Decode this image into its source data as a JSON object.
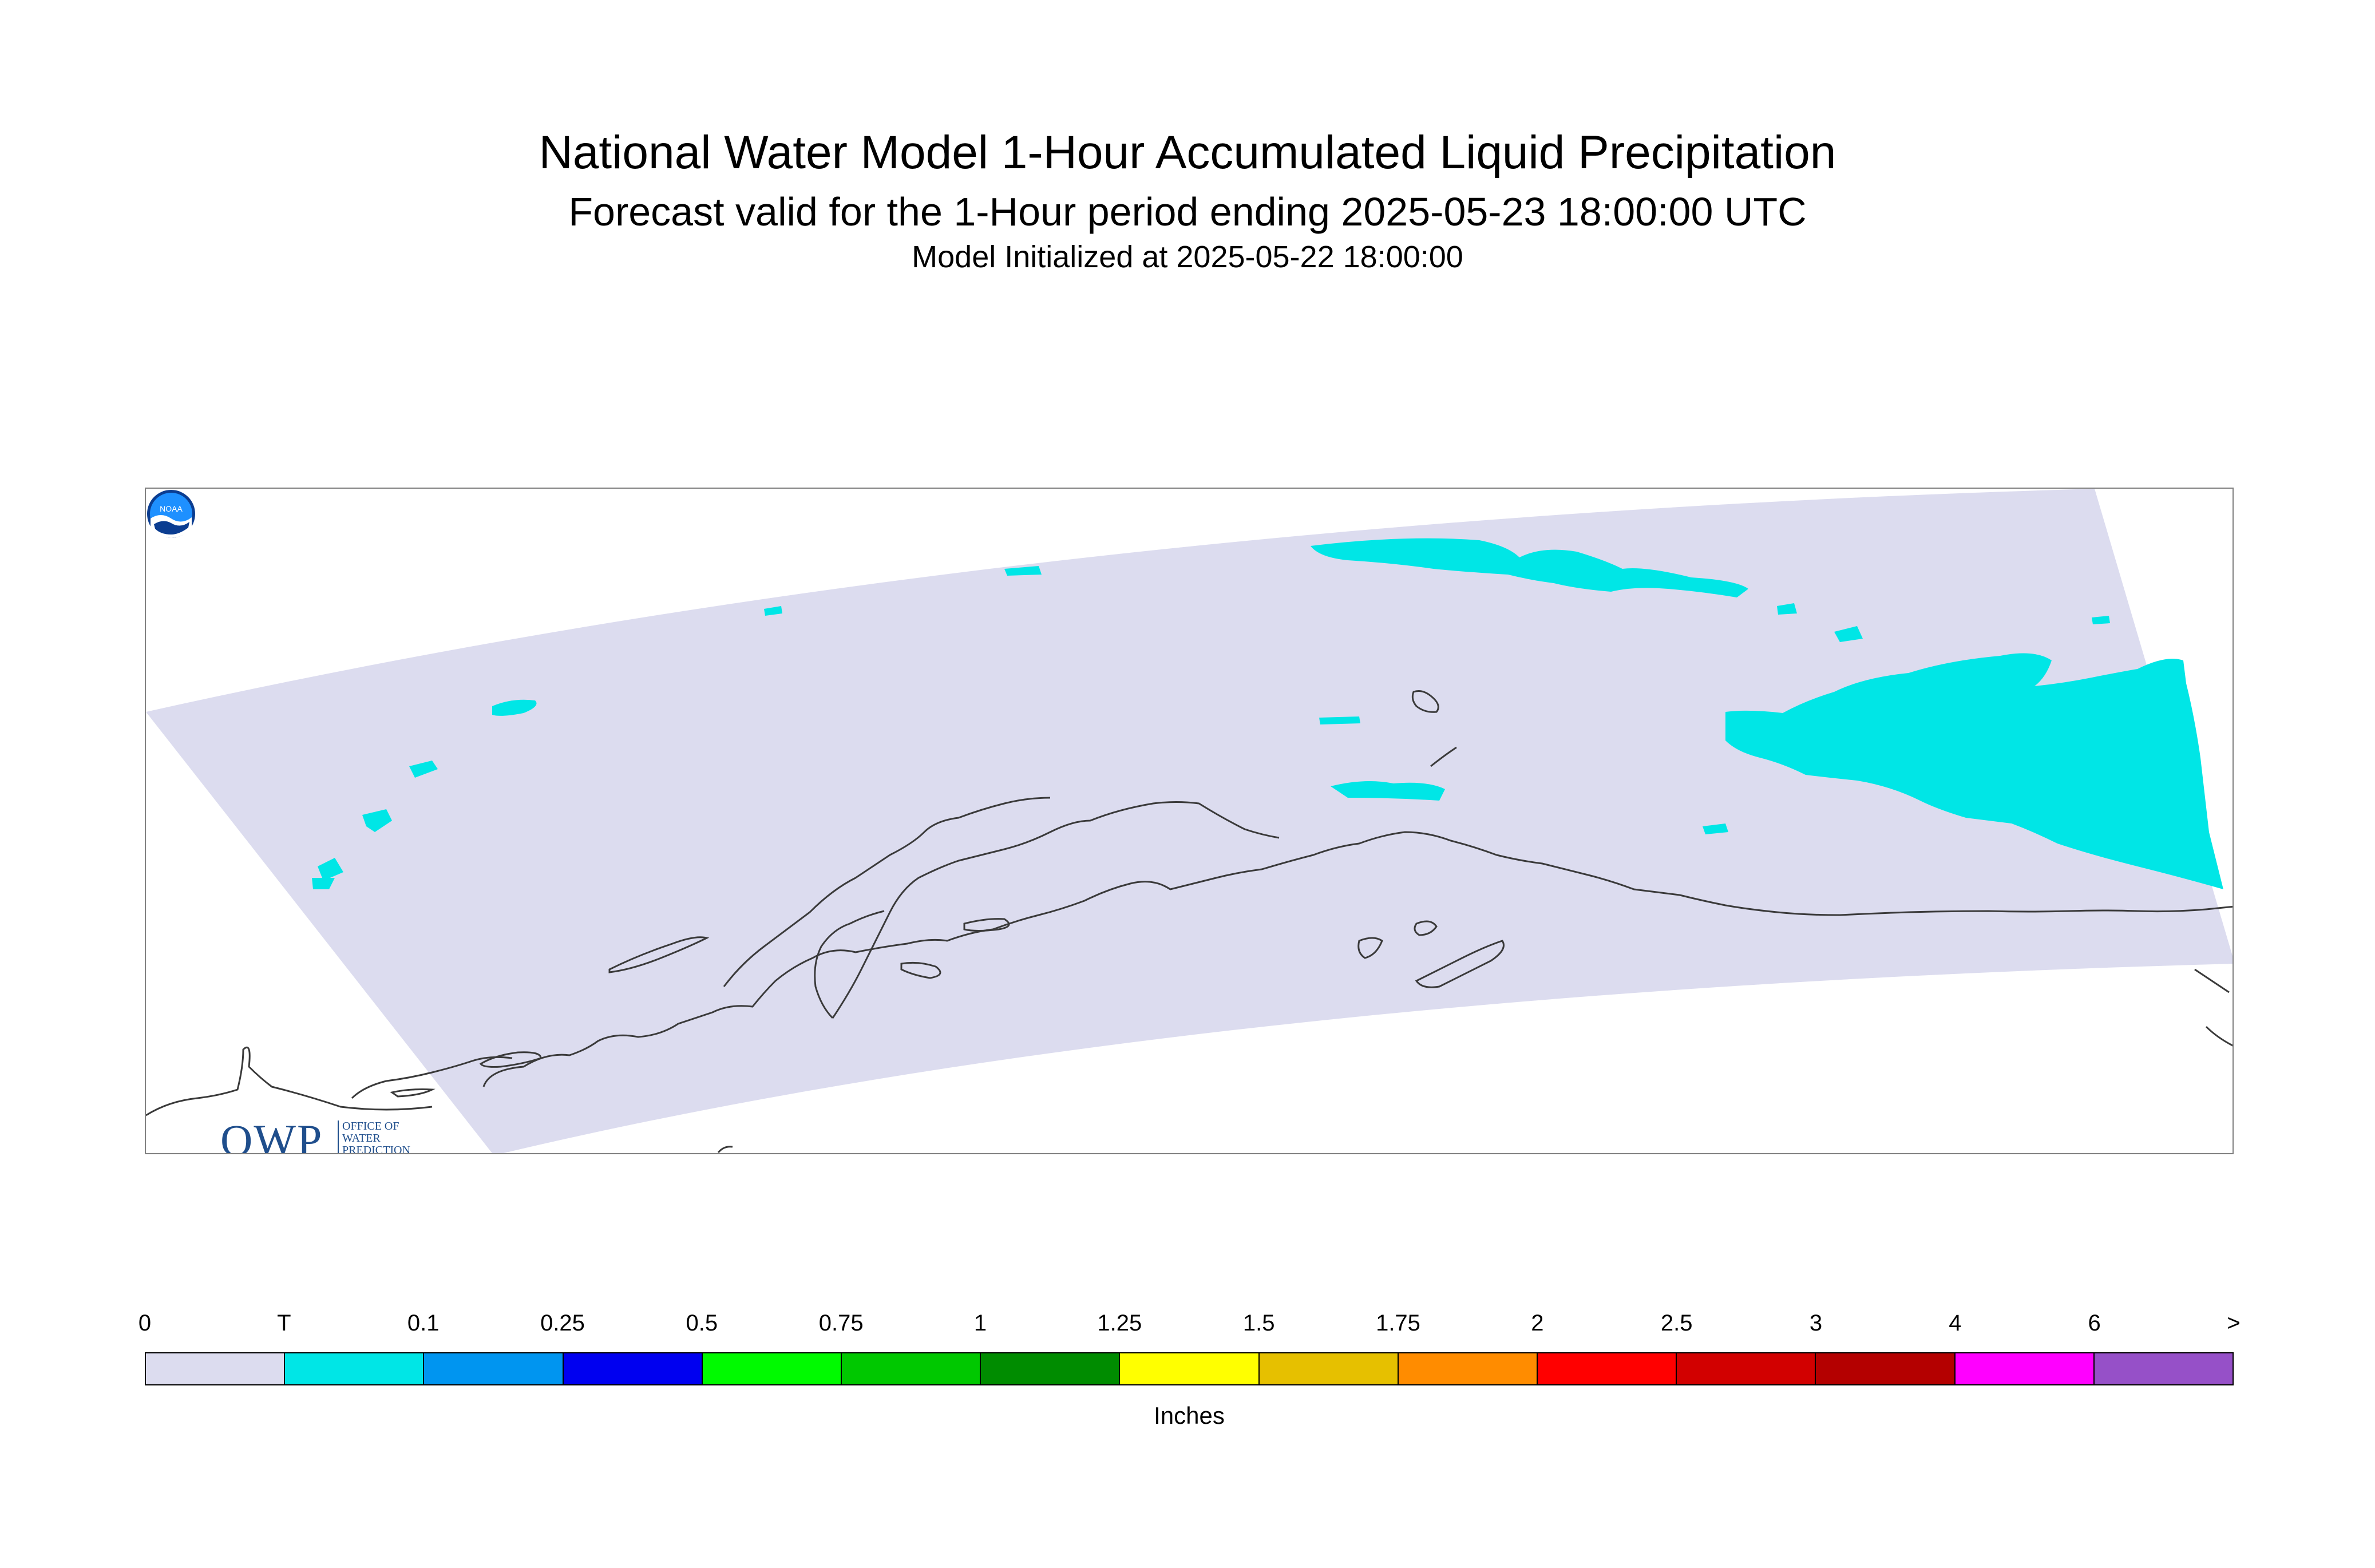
{
  "title": {
    "main": "National Water Model 1-Hour Accumulated Liquid Precipitation",
    "valid": "Forecast valid for the 1-Hour period ending 2025-05-23 18:00:00 UTC",
    "init": "Model Initialized at 2025-05-22 18:00:00"
  },
  "owp_logo": {
    "letters": "OWP",
    "line1": "OFFICE OF",
    "line2": "WATER",
    "line3": "PREDICTION"
  },
  "noaa_logo": {
    "text": "NOAA"
  },
  "colors": {
    "domain_fill": "#dcdcef",
    "trace": "#00e6e6",
    "coastline": "#3a3a3a",
    "frame": "#808080"
  },
  "legend": {
    "units": "Inches",
    "ticks": [
      "0",
      "T",
      "0.1",
      "0.25",
      "0.5",
      "0.75",
      "1",
      "1.25",
      "1.5",
      "1.75",
      "2",
      "2.5",
      "3",
      "4",
      "6",
      ">"
    ],
    "bins": [
      {
        "color": "#dcdcef"
      },
      {
        "color": "#00e6e6"
      },
      {
        "color": "#0095f0"
      },
      {
        "color": "#0000f0"
      },
      {
        "color": "#00fa00"
      },
      {
        "color": "#00c800"
      },
      {
        "color": "#008c00"
      },
      {
        "color": "#ffff00"
      },
      {
        "color": "#e6c000"
      },
      {
        "color": "#ff8c00"
      },
      {
        "color": "#ff0000"
      },
      {
        "color": "#d20000"
      },
      {
        "color": "#b40000"
      },
      {
        "color": "#ff00ff"
      },
      {
        "color": "#9650c8"
      }
    ]
  }
}
